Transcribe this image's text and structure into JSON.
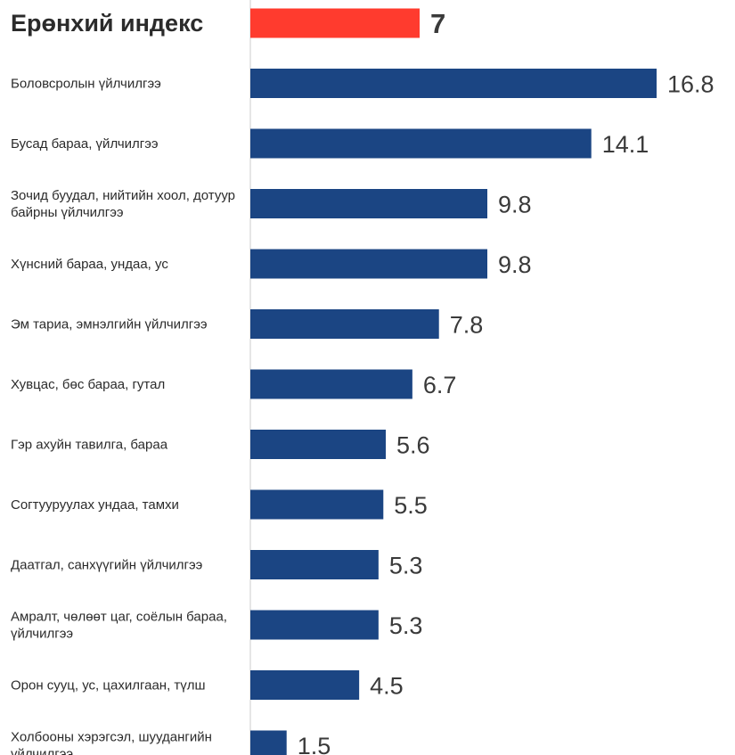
{
  "chart_data": {
    "type": "bar",
    "orientation": "horizontal",
    "title": "",
    "xlabel": "",
    "ylabel": "",
    "xlim": [
      0,
      18
    ],
    "grid": false,
    "legend": "none",
    "colors": {
      "bar": "#1b4583",
      "highlight_bar": "#ff3b2e",
      "highlight_text": "#ff3b2e",
      "axis_line": "#cccccc",
      "label_text": "#2b2b2b",
      "value_text": "#3a3a3a"
    },
    "categories": [
      [
        "Ерөнхий индекс"
      ],
      [
        "Боловсролын үйлчилгээ"
      ],
      [
        "Бусад бараа, үйлчилгээ"
      ],
      [
        "Зочид буудал, нийтийн хоол, дотуур",
        "байрны үйлчилгээ"
      ],
      [
        "Хүнсний бараа, ундаа, ус"
      ],
      [
        "Эм тариа, эмнэлгийн үйлчилгээ"
      ],
      [
        "Хувцас, бөс бараа, гутал"
      ],
      [
        "Гэр ахуйн тавилга, бараа"
      ],
      [
        "Согтууруулах ундаа, тамхи"
      ],
      [
        "Даатгал, санхүүгийн үйлчилгээ"
      ],
      [
        "Амралт, чөлөөт цаг, соёлын бараа,",
        "үйлчилгээ"
      ],
      [
        "Орон сууц, ус, цахилгаан, түлш"
      ],
      [
        "Холбооны хэрэгсэл, шуудангийн",
        "үйлчилгээ"
      ]
    ],
    "values": [
      7,
      16.8,
      14.1,
      9.8,
      9.8,
      7.8,
      6.7,
      5.6,
      5.5,
      5.3,
      5.3,
      4.5,
      1.5
    ],
    "value_labels": [
      "7",
      "16.8",
      "14.1",
      "9.8",
      "9.8",
      "7.8",
      "6.7",
      "5.6",
      "5.5",
      "5.3",
      "5.3",
      "4.5",
      "1.5"
    ],
    "highlight_index": 0
  }
}
